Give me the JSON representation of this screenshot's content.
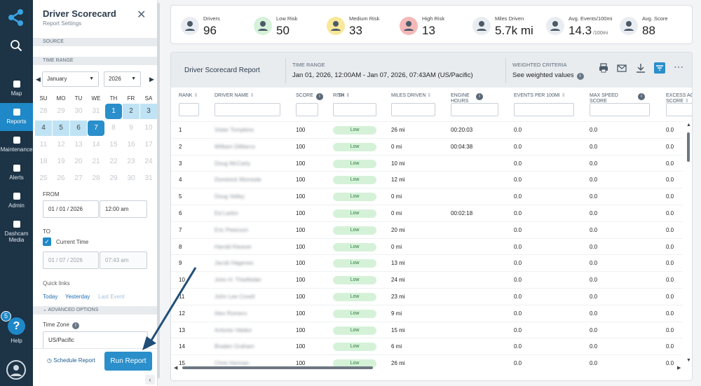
{
  "nav": {
    "items": [
      {
        "label": "Map",
        "icon": "map-icon"
      },
      {
        "label": "Reports",
        "icon": "reports-icon",
        "active": true
      },
      {
        "label": "Maintenance",
        "icon": "wrench-icon"
      },
      {
        "label": "Alerts",
        "icon": "bell-icon"
      },
      {
        "label": "Admin",
        "icon": "admin-icon"
      },
      {
        "label": "Dashcam Media",
        "icon": "camera-icon"
      }
    ],
    "help_label": "Help",
    "help_badge": "5",
    "help_glyph": "?"
  },
  "panel": {
    "title": "Driver Scorecard",
    "subtitle": "Report Settings",
    "source_label": "SOURCE",
    "time_range_label": "TIME RANGE",
    "month": "January",
    "year": "2026",
    "weekdays": [
      "SU",
      "MO",
      "TU",
      "WE",
      "TH",
      "FR",
      "SA"
    ],
    "weeks": [
      [
        "28",
        "29",
        "30",
        "31",
        "1",
        "2",
        "3"
      ],
      [
        "4",
        "5",
        "6",
        "7",
        "8",
        "9",
        "10"
      ],
      [
        "11",
        "12",
        "13",
        "14",
        "15",
        "16",
        "17"
      ],
      [
        "18",
        "19",
        "20",
        "21",
        "22",
        "23",
        "24"
      ],
      [
        "25",
        "26",
        "27",
        "28",
        "29",
        "30",
        "31"
      ]
    ],
    "from_label": "FROM",
    "from_date": "01 / 01 / 2026",
    "from_time": "12:00 am",
    "to_label": "TO",
    "current_time_label": "Current Time",
    "to_date": "01 / 07 / 2026",
    "to_time": "07:43 am",
    "quick_links_label": "Quick links",
    "quick_links": [
      "Today",
      "Yesterday",
      "Last Event"
    ],
    "advanced_label": "ADVANCED OPTIONS",
    "timezone_label": "Time Zone",
    "timezone": "US/Pacific",
    "schedule_label": "Schedule Report",
    "run_label": "Run Report"
  },
  "stats": [
    {
      "label": "Drivers",
      "value": "96",
      "color": "#e9edf1",
      "icon": "drivers-icon"
    },
    {
      "label": "Low Risk",
      "value": "50",
      "color": "#d6f2da",
      "icon": "low-risk-icon"
    },
    {
      "label": "Medium Risk",
      "value": "33",
      "color": "#f9e79a",
      "icon": "medium-risk-icon"
    },
    {
      "label": "High Risk",
      "value": "13",
      "color": "#f5b8b8",
      "icon": "high-risk-icon"
    },
    {
      "label": "Miles Driven",
      "value": "5.7k mi",
      "color": "#e9edf1",
      "icon": "miles-icon"
    },
    {
      "label": "Avg. Events/100mi",
      "value": "14.3",
      "unit": "/100mi",
      "color": "#e9edf1",
      "icon": "events-icon"
    },
    {
      "label": "Avg. Score",
      "value": "88",
      "color": "#e9edf1",
      "icon": "score-icon"
    }
  ],
  "report": {
    "title": "Driver Scorecard Report",
    "time_range_label": "TIME RANGE",
    "time_range_value": "Jan 01, 2026, 12:00AM - Jan 07, 2026, 07:43AM (US/Pacific)",
    "criteria_label": "WEIGHTED CRITERIA",
    "criteria_value": "See weighted values",
    "columns": [
      {
        "key": "rank",
        "label": "RANK"
      },
      {
        "key": "driver",
        "label": "DRIVER NAME"
      },
      {
        "key": "score",
        "label": "SCORE"
      },
      {
        "key": "th",
        "label": "TH"
      },
      {
        "key": "risk",
        "label": "RISK"
      },
      {
        "key": "miles",
        "label": "MILES DRIVEN"
      },
      {
        "key": "engine",
        "label": "ENGINE HOURS"
      },
      {
        "key": "events",
        "label": "EVENTS PER 100MI"
      },
      {
        "key": "maxspeed",
        "label": "MAX SPEED SCORE"
      },
      {
        "key": "excess",
        "label": "EXCESS AC SCORE"
      }
    ],
    "rows": [
      {
        "rank": "1",
        "driver": "Vister Tompkins",
        "score": "100",
        "risk": "Low",
        "miles": "26 mi",
        "engine": "00:20:03",
        "events": "0.0",
        "maxspeed": "0.0",
        "excess": "0.0"
      },
      {
        "rank": "2",
        "driver": "William DiMarco",
        "score": "100",
        "risk": "Low",
        "miles": "0 mi",
        "engine": "00:04:38",
        "events": "0.0",
        "maxspeed": "0.0",
        "excess": "0.0"
      },
      {
        "rank": "3",
        "driver": "Doug McCarty",
        "score": "100",
        "risk": "Low",
        "miles": "10 mi",
        "engine": "",
        "events": "0.0",
        "maxspeed": "0.0",
        "excess": "0.0"
      },
      {
        "rank": "4",
        "driver": "Dominick Morreale",
        "score": "100",
        "risk": "Low",
        "miles": "12 mi",
        "engine": "",
        "events": "0.0",
        "maxspeed": "0.0",
        "excess": "0.0"
      },
      {
        "rank": "5",
        "driver": "Doug Velley",
        "score": "100",
        "risk": "Low",
        "miles": "0 mi",
        "engine": "",
        "events": "0.0",
        "maxspeed": "0.0",
        "excess": "0.0"
      },
      {
        "rank": "6",
        "driver": "Ed Larkin",
        "score": "100",
        "risk": "Low",
        "miles": "0 mi",
        "engine": "00:02:18",
        "events": "0.0",
        "maxspeed": "0.0",
        "excess": "0.0"
      },
      {
        "rank": "7",
        "driver": "Eric Peterson",
        "score": "100",
        "risk": "Low",
        "miles": "20 mi",
        "engine": "",
        "events": "0.0",
        "maxspeed": "0.0",
        "excess": "0.0"
      },
      {
        "rank": "8",
        "driver": "Harold Kleaver",
        "score": "100",
        "risk": "Low",
        "miles": "0 mi",
        "engine": "",
        "events": "0.0",
        "maxspeed": "0.0",
        "excess": "0.0"
      },
      {
        "rank": "9",
        "driver": "Jacob Hagenes",
        "score": "100",
        "risk": "Low",
        "miles": "13 mi",
        "engine": "",
        "events": "0.0",
        "maxspeed": "0.0",
        "excess": "0.0"
      },
      {
        "rank": "10",
        "driver": "John H. Thielfelder",
        "score": "100",
        "risk": "Low",
        "miles": "24 mi",
        "engine": "",
        "events": "0.0",
        "maxspeed": "0.0",
        "excess": "0.0"
      },
      {
        "rank": "11",
        "driver": "John Lee Covell",
        "score": "100",
        "risk": "Low",
        "miles": "23 mi",
        "engine": "",
        "events": "0.0",
        "maxspeed": "0.0",
        "excess": "0.0"
      },
      {
        "rank": "12",
        "driver": "Alex Romero",
        "score": "100",
        "risk": "Low",
        "miles": "9 mi",
        "engine": "",
        "events": "0.0",
        "maxspeed": "0.0",
        "excess": "0.0"
      },
      {
        "rank": "13",
        "driver": "Antonio Valdez",
        "score": "100",
        "risk": "Low",
        "miles": "15 mi",
        "engine": "",
        "events": "0.0",
        "maxspeed": "0.0",
        "excess": "0.0"
      },
      {
        "rank": "14",
        "driver": "Braden Graham",
        "score": "100",
        "risk": "Low",
        "miles": "6 mi",
        "engine": "",
        "events": "0.0",
        "maxspeed": "0.0",
        "excess": "0.0"
      },
      {
        "rank": "15",
        "driver": "Chris Herman",
        "score": "100",
        "risk": "Low",
        "miles": "26 mi",
        "engine": "",
        "events": "0.0",
        "maxspeed": "0.0",
        "excess": "0.0"
      }
    ]
  },
  "colors": {
    "accent": "#2a8fcb",
    "nav_bg": "#1d3346",
    "risk_low_bg": "#d5f2d9",
    "arrow": "#1f4e79"
  }
}
